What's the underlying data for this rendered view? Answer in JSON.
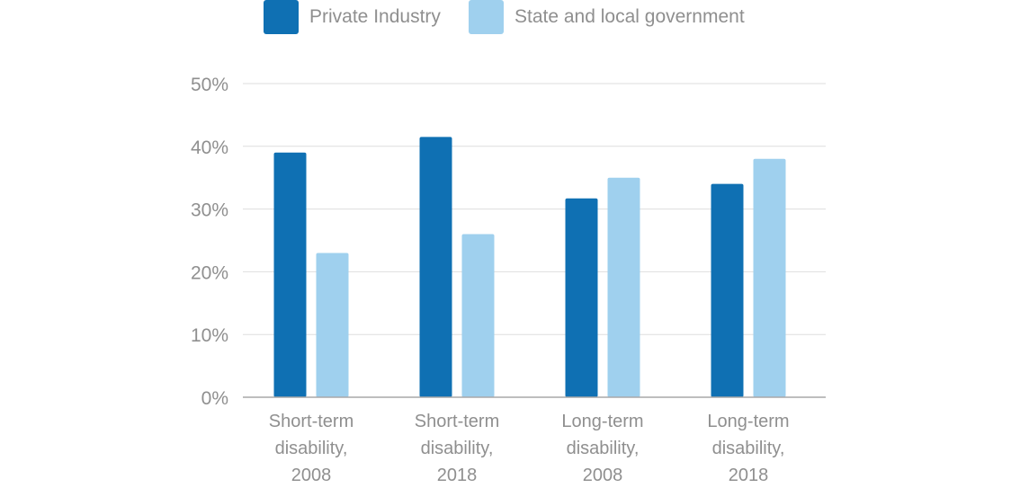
{
  "chart_data": {
    "type": "bar",
    "title": "",
    "xlabel": "",
    "ylabel": "",
    "categories": [
      [
        "Short-term",
        "disability,",
        "2008"
      ],
      [
        "Short-term",
        "disability,",
        "2018"
      ],
      [
        "Long-term",
        "disability,",
        "2008"
      ],
      [
        "Long-term",
        "disability,",
        "2018"
      ]
    ],
    "series": [
      {
        "name": "Private Industry",
        "color": "#0f70b3",
        "values": [
          39,
          41.5,
          31.7,
          34
        ]
      },
      {
        "name": "State and local government",
        "color": "#9fd0ee",
        "values": [
          23,
          26,
          35,
          38
        ]
      }
    ],
    "ylim": [
      0,
      50
    ],
    "yticks": [
      0,
      10,
      20,
      30,
      40,
      50
    ],
    "ytick_labels": [
      "0%",
      "10%",
      "20%",
      "30%",
      "40%",
      "50%"
    ],
    "grid": true,
    "legend_position": "top"
  },
  "colors": {
    "grid": "#dedede",
    "axis": "#a8a8a8",
    "text": "#8f8f8f"
  }
}
